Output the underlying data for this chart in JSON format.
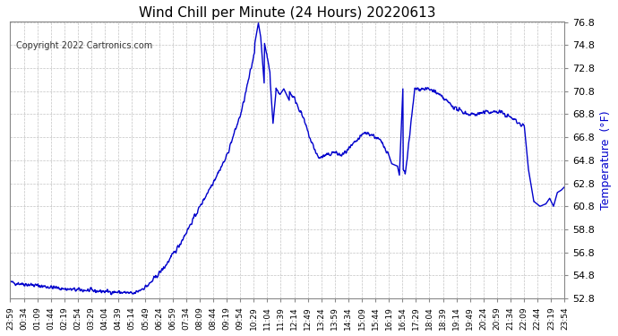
{
  "title": "Wind Chill per Minute (24 Hours) 20220613",
  "ylabel": "Temperature  (°F)",
  "copyright_text": "Copyright 2022 Cartronics.com",
  "background_color": "#ffffff",
  "plot_bg_color": "#ffffff",
  "grid_color": "#aaaaaa",
  "line_color": "#0000cc",
  "ylabel_color": "#0000cc",
  "title_color": "#000000",
  "ylim": [
    52.8,
    76.8
  ],
  "yticks": [
    52.8,
    54.8,
    56.8,
    58.8,
    60.8,
    62.8,
    64.8,
    66.8,
    68.8,
    70.8,
    72.8,
    74.8,
    76.8
  ],
  "x_labels": [
    "23:59",
    "00:34",
    "01:09",
    "01:44",
    "02:19",
    "02:54",
    "03:29",
    "04:04",
    "04:39",
    "05:14",
    "05:49",
    "06:24",
    "06:59",
    "07:34",
    "08:09",
    "08:44",
    "09:19",
    "09:54",
    "10:29",
    "11:04",
    "11:39",
    "12:14",
    "12:49",
    "13:24",
    "13:59",
    "14:34",
    "15:09",
    "15:44",
    "16:19",
    "16:54",
    "17:29",
    "18:04",
    "18:39",
    "19:14",
    "19:49",
    "20:24",
    "20:59",
    "21:34",
    "22:09",
    "22:44",
    "23:19",
    "23:54"
  ],
  "num_points": 1440,
  "line_width": 1.0
}
